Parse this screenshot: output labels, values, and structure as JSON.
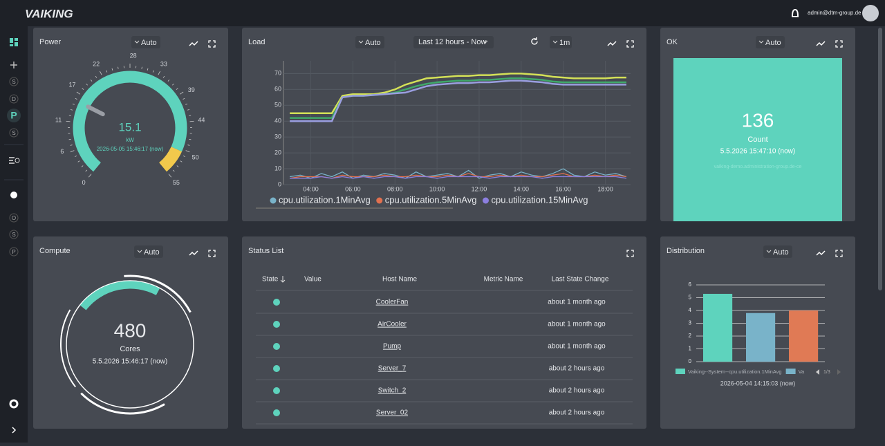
{
  "header": {
    "logo": "VAIKING",
    "user": "admin@dtm-group.de"
  },
  "sidebar": {
    "items": [
      "S",
      "D",
      "P",
      "S",
      "O",
      "S",
      "P"
    ]
  },
  "panels": {
    "power": {
      "title": "Power",
      "refresh": "Auto",
      "chart_data": {
        "type": "gauge",
        "value": 15.1,
        "unit": "kW",
        "timestamp": "2026-05-05 15:46:17 (now)",
        "range": [
          0,
          55
        ],
        "ticks": [
          0,
          6,
          11,
          17,
          22,
          28,
          33,
          39,
          44,
          50,
          55
        ],
        "bands": [
          {
            "from": 0,
            "to": 50,
            "color": "#5ed3bd"
          },
          {
            "from": 50,
            "to": 55,
            "color": "#f2c94c"
          }
        ],
        "value_color": "#5ed3bd"
      }
    },
    "load": {
      "title": "Load",
      "refresh": "Auto",
      "time_range": "Last 12 hours - Now",
      "interval": "1m",
      "chart_data": {
        "type": "line",
        "x": [
          3,
          3.5,
          4,
          4.5,
          5,
          5.5,
          6,
          6.5,
          7,
          7.5,
          8,
          8.5,
          9,
          9.5,
          10,
          10.5,
          11,
          11.5,
          12,
          12.5,
          13,
          13.5,
          14,
          14.5,
          15,
          15.5,
          16,
          16.5,
          17,
          17.5,
          18,
          18.5,
          19
        ],
        "xlim": [
          2.7,
          19.2
        ],
        "xticks": [
          {
            "value": 4,
            "label": "04:00"
          },
          {
            "value": 6,
            "label": "06:00"
          },
          {
            "value": 8,
            "label": "08:00"
          },
          {
            "value": 10,
            "label": "10:00"
          },
          {
            "value": 12,
            "label": "12:00"
          },
          {
            "value": 14,
            "label": "14:00"
          },
          {
            "value": 16,
            "label": "16:00"
          },
          {
            "value": 18,
            "label": "18:00"
          }
        ],
        "ylim": [
          0,
          78
        ],
        "yticks": [
          0,
          10,
          20,
          30,
          40,
          50,
          60,
          70
        ],
        "grid": true,
        "series": [
          {
            "color": "#d4e157",
            "values": [
              45,
              45,
              45,
              45,
              45,
              56,
              57,
              57,
              57,
              58,
              60,
              63,
              65,
              67,
              67.5,
              68,
              68.5,
              68.5,
              69,
              69,
              69.5,
              70,
              70,
              69.5,
              69,
              68,
              67.5,
              67,
              67,
              67,
              67,
              67.5,
              67.5
            ]
          },
          {
            "color": "#3fa86a",
            "values": [
              42,
              42,
              42,
              42,
              42,
              55,
              56,
              56,
              56.5,
              57,
              58,
              60,
              62,
              63.5,
              64.5,
              65,
              65.5,
              65.5,
              66,
              66,
              66.5,
              67,
              67,
              66.5,
              66,
              65,
              64.5,
              64.5,
              64.5,
              64.5,
              64.5,
              64.5,
              64.5
            ]
          },
          {
            "color": "#9a9ee0",
            "values": [
              40,
              40,
              40,
              40,
              40,
              55,
              56,
              56,
              56.5,
              57,
              57.5,
              58,
              60,
              62,
              63,
              63.5,
              64,
              64,
              64.5,
              64.5,
              65,
              65.5,
              65.5,
              65,
              64.5,
              63.5,
              63,
              63,
              63,
              63,
              63,
              63,
              63
            ]
          },
          {
            "name": "cpu.utilization.1MinAvg",
            "color": "#79b3c9",
            "values": [
              5,
              6,
              4,
              7,
              5,
              8,
              4,
              6,
              5,
              7,
              6,
              4,
              8,
              5,
              6,
              7,
              5,
              9,
              4,
              6,
              7,
              5,
              8,
              6,
              5,
              7,
              10,
              6,
              5,
              8,
              6,
              7,
              5
            ]
          },
          {
            "name": "cpu.utilization.5MinAvg",
            "color": "#e0704f",
            "values": [
              4,
              5,
              5,
              5,
              4,
              6,
              5,
              5,
              5,
              6,
              5,
              5,
              6,
              5,
              5,
              6,
              5,
              7,
              5,
              5,
              6,
              5,
              6,
              5,
              5,
              6,
              7,
              5,
              5,
              6,
              5,
              6,
              5
            ]
          },
          {
            "name": "cpu.utilization.15MinAvg",
            "color": "#8c7fe0",
            "values": [
              4,
              4,
              4,
              5,
              4,
              5,
              4,
              5,
              4,
              5,
              5,
              4,
              5,
              5,
              4,
              5,
              5,
              5,
              5,
              4,
              5,
              5,
              5,
              5,
              4,
              5,
              5,
              5,
              5,
              5,
              5,
              5,
              4
            ]
          }
        ]
      }
    },
    "ok": {
      "title": "OK",
      "refresh": "Auto",
      "value": 136,
      "label": "Count",
      "timestamp": "5.5.2026 15:47:10 (now)",
      "host": "vaiking-demo.administration-group.de-ce",
      "color": "#5ed3bd"
    },
    "compute": {
      "title": "Compute",
      "refresh": "Auto",
      "value": 480,
      "label": "Cores",
      "timestamp": "5.5.2026 15:46:17 (now)"
    },
    "status": {
      "title": "Status List",
      "columns": [
        "State",
        "Value",
        "Host Name",
        "Metric Name",
        "Last State Change"
      ],
      "state_color": "#5ed3bd",
      "rows": [
        {
          "host": "CoolerFan",
          "change": "about 1 month ago"
        },
        {
          "host": "AirCooler",
          "change": "about 1 month ago"
        },
        {
          "host": "Pump",
          "change": "about 1 month ago"
        },
        {
          "host": "Server_7",
          "change": "about 2 hours ago"
        },
        {
          "host": "Switch_2",
          "change": "about 2 hours ago"
        },
        {
          "host": "Server_02",
          "change": "about 2 hours ago"
        }
      ]
    },
    "distribution": {
      "title": "Distribution",
      "refresh": "Auto",
      "chart_data": {
        "type": "bar",
        "ylim": [
          0,
          6
        ],
        "yticks": [
          0,
          1,
          2,
          3,
          4,
          5,
          6
        ],
        "grid": true,
        "series": [
          {
            "name": "Vaiking--System--cpu.utilization.1MinAvg",
            "color": "#5ed3bd",
            "values": [
              5.3
            ]
          },
          {
            "name": "Va",
            "color": "#79b3c9",
            "values": [
              3.8
            ]
          },
          {
            "name": null,
            "color": "#e07a55",
            "values": [
              4
            ]
          }
        ],
        "legend_page": "1/3",
        "timestamp": "2026-05-04 14:15:03 (now)"
      }
    }
  }
}
